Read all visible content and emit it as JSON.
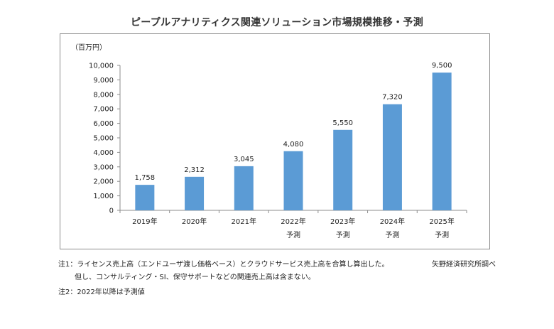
{
  "chart_data": {
    "type": "bar",
    "title": "ピープルアナリティクス関連ソリューション市場規模推移・予測",
    "ylabel": "（百万円）",
    "ylim": [
      0,
      10000
    ],
    "yticks": [
      "0",
      "1,000",
      "2,000",
      "3,000",
      "4,000",
      "5,000",
      "6,000",
      "7,000",
      "8,000",
      "9,000",
      "10,000"
    ],
    "categories": [
      {
        "line1": "2019年",
        "line2": ""
      },
      {
        "line1": "2020年",
        "line2": ""
      },
      {
        "line1": "2021年",
        "line2": ""
      },
      {
        "line1": "2022年",
        "line2": "予測"
      },
      {
        "line1": "2023年",
        "line2": "予測"
      },
      {
        "line1": "2024年",
        "line2": "予測"
      },
      {
        "line1": "2025年",
        "line2": "予測"
      }
    ],
    "values": [
      1758,
      2312,
      3045,
      4080,
      5550,
      7320,
      9500
    ],
    "value_labels": [
      "1,758",
      "2,312",
      "3,045",
      "4,080",
      "5,550",
      "7,320",
      "9,500"
    ],
    "bar_color": "#5b9bd5",
    "legend": "none",
    "grid": false
  },
  "notes": {
    "note1": "注1：ライセンス売上高（エンドユーザ渡し価格ベース）とクラウドサービス売上高を合算し算出した。",
    "note1_cont": "但し、コンサルティング・SI、保守サポートなどの関連売上高は含まない。",
    "note2": "注2：2022年以降は予測値",
    "source": "矢野経済研究所調べ"
  }
}
